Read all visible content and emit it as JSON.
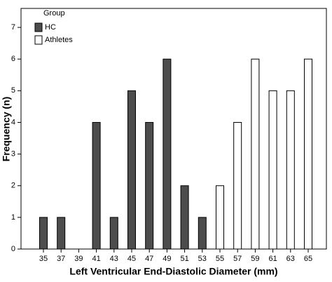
{
  "chart_data": {
    "type": "bar",
    "x_label": "Left Ventricular End-Diastolic Diameter (mm)",
    "y_label": "Frequency (n)",
    "legend_title": "Group",
    "categories": [
      "35",
      "37",
      "39",
      "41",
      "43",
      "45",
      "47",
      "49",
      "51",
      "53",
      "55",
      "57",
      "59",
      "61",
      "63",
      "65"
    ],
    "series": [
      {
        "name": "HC",
        "color": "#4d4d4d",
        "values": [
          1,
          1,
          null,
          4,
          1,
          5,
          4,
          6,
          2,
          1,
          null,
          null,
          null,
          null,
          null,
          null
        ]
      },
      {
        "name": "Athletes",
        "color": "#ffffff",
        "values": [
          null,
          null,
          null,
          null,
          null,
          null,
          null,
          null,
          null,
          null,
          2,
          4,
          6,
          5,
          5,
          6
        ]
      }
    ],
    "ylim": [
      0,
      7.6
    ],
    "yticks": [
      0,
      1,
      2,
      3,
      4,
      5,
      6,
      7
    ],
    "legend": "top-left"
  }
}
